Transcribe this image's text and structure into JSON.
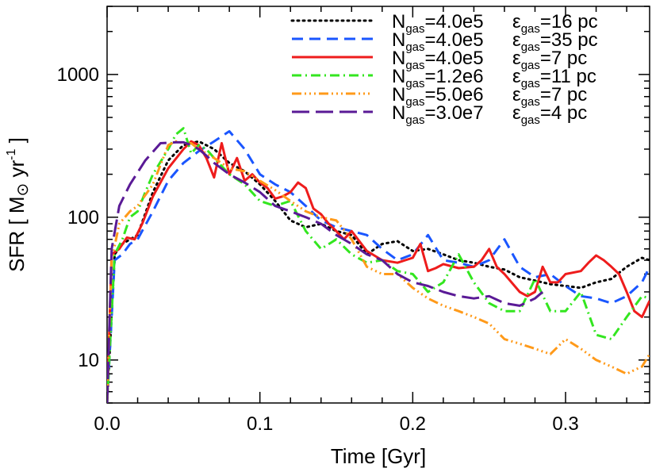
{
  "chart_data": {
    "type": "line",
    "xlabel": "Time  [Gyr]",
    "ylabel": {
      "prefix": "SFR [ M",
      "sun": "⊙",
      "mid": " yr",
      "sup": "-1",
      "suffix": " ]"
    },
    "xlim": [
      0.0,
      0.355
    ],
    "ylim": [
      5,
      3000
    ],
    "y_scale": "log",
    "x_ticks": [
      0.0,
      0.1,
      0.2,
      0.3
    ],
    "x_tick_labels": [
      "0.0",
      "0.1",
      "0.2",
      "0.3"
    ],
    "y_ticks": [
      10,
      100,
      1000
    ],
    "y_tick_labels": [
      "10",
      "100",
      "1000"
    ],
    "grid": false,
    "legend_position": "top-right",
    "series": [
      {
        "name": {
          "n_sym": "N",
          "n_sub": "gas",
          "n_val": "=4.0e5",
          "e_sym": "ε",
          "e_sub": "gas",
          "e_val": "=16 pc"
        },
        "color": "#000000",
        "dash": "dotted",
        "x": [
          0.0,
          0.005,
          0.01,
          0.015,
          0.02,
          0.03,
          0.04,
          0.05,
          0.06,
          0.07,
          0.08,
          0.09,
          0.1,
          0.11,
          0.12,
          0.13,
          0.14,
          0.15,
          0.16,
          0.17,
          0.18,
          0.19,
          0.2,
          0.21,
          0.22,
          0.23,
          0.24,
          0.25,
          0.26,
          0.27,
          0.28,
          0.29,
          0.3,
          0.31,
          0.32,
          0.33,
          0.34,
          0.35,
          0.355
        ],
        "y": [
          5,
          55,
          65,
          70,
          75,
          150,
          250,
          320,
          340,
          300,
          240,
          210,
          170,
          130,
          95,
          85,
          90,
          80,
          75,
          55,
          65,
          68,
          58,
          60,
          55,
          50,
          48,
          45,
          43,
          38,
          36,
          34,
          33,
          32,
          35,
          37,
          45,
          52,
          50
        ]
      },
      {
        "name": {
          "n_sym": "N",
          "n_sub": "gas",
          "n_val": "=4.0e5",
          "e_sym": "ε",
          "e_sub": "gas",
          "e_val": "=35 pc"
        },
        "color": "#1a56ff",
        "dash": "dashed",
        "x": [
          0.0,
          0.005,
          0.01,
          0.015,
          0.02,
          0.03,
          0.04,
          0.05,
          0.06,
          0.07,
          0.08,
          0.09,
          0.1,
          0.11,
          0.12,
          0.13,
          0.14,
          0.15,
          0.16,
          0.17,
          0.18,
          0.19,
          0.2,
          0.21,
          0.22,
          0.23,
          0.24,
          0.25,
          0.26,
          0.27,
          0.28,
          0.29,
          0.3,
          0.31,
          0.32,
          0.33,
          0.34,
          0.35,
          0.355
        ],
        "y": [
          5,
          50,
          55,
          65,
          70,
          110,
          180,
          240,
          290,
          340,
          400,
          300,
          200,
          170,
          150,
          120,
          95,
          85,
          80,
          75,
          60,
          50,
          55,
          75,
          50,
          48,
          45,
          50,
          70,
          45,
          38,
          40,
          33,
          28,
          27,
          25,
          28,
          35,
          45
        ]
      },
      {
        "name": {
          "n_sym": "N",
          "n_sub": "gas",
          "n_val": "=4.0e5",
          "e_sym": "ε",
          "e_sub": "gas",
          "e_val": "=7 pc"
        },
        "color": "#ee1c1c",
        "dash": "solid",
        "x": [
          0.0,
          0.003,
          0.008,
          0.013,
          0.018,
          0.023,
          0.03,
          0.04,
          0.05,
          0.055,
          0.06,
          0.065,
          0.07,
          0.075,
          0.08,
          0.085,
          0.09,
          0.095,
          0.1,
          0.105,
          0.11,
          0.115,
          0.12,
          0.125,
          0.13,
          0.135,
          0.14,
          0.145,
          0.15,
          0.155,
          0.16,
          0.17,
          0.18,
          0.19,
          0.2,
          0.205,
          0.21,
          0.215,
          0.22,
          0.23,
          0.24,
          0.245,
          0.25,
          0.255,
          0.26,
          0.27,
          0.275,
          0.28,
          0.285,
          0.29,
          0.295,
          0.3,
          0.31,
          0.315,
          0.32,
          0.325,
          0.33,
          0.335,
          0.34,
          0.345,
          0.35,
          0.355
        ],
        "y": [
          5,
          55,
          60,
          72,
          70,
          90,
          140,
          220,
          300,
          340,
          320,
          260,
          190,
          330,
          200,
          260,
          180,
          200,
          175,
          160,
          135,
          140,
          150,
          175,
          160,
          115,
          105,
          90,
          80,
          70,
          80,
          58,
          50,
          48,
          52,
          65,
          42,
          44,
          47,
          44,
          45,
          50,
          60,
          45,
          40,
          30,
          28,
          30,
          45,
          35,
          35,
          40,
          42,
          48,
          54,
          50,
          45,
          40,
          30,
          22,
          20,
          26
        ]
      },
      {
        "name": {
          "n_sym": "N",
          "n_sub": "gas",
          "n_val": "=1.2e6",
          "e_sym": "ε",
          "e_sub": "gas",
          "e_val": "=11 pc"
        },
        "color": "#33e61f",
        "dash": "dashdot",
        "x": [
          0.0,
          0.005,
          0.01,
          0.015,
          0.02,
          0.025,
          0.03,
          0.04,
          0.045,
          0.05,
          0.055,
          0.06,
          0.065,
          0.07,
          0.08,
          0.09,
          0.1,
          0.11,
          0.12,
          0.13,
          0.14,
          0.15,
          0.16,
          0.17,
          0.18,
          0.19,
          0.2,
          0.21,
          0.22,
          0.23,
          0.24,
          0.25,
          0.26,
          0.27,
          0.28,
          0.29,
          0.3,
          0.31,
          0.32,
          0.33,
          0.34,
          0.35,
          0.355
        ],
        "y": [
          5,
          55,
          70,
          100,
          110,
          150,
          200,
          300,
          380,
          420,
          280,
          320,
          300,
          260,
          200,
          170,
          130,
          120,
          130,
          80,
          60,
          70,
          55,
          48,
          50,
          42,
          40,
          30,
          35,
          55,
          35,
          25,
          22,
          22,
          37,
          22,
          22,
          30,
          15,
          14,
          20,
          28,
          27
        ]
      },
      {
        "name": {
          "n_sym": "N",
          "n_sub": "gas",
          "n_val": "=5.0e6",
          "e_sym": "ε",
          "e_sub": "gas",
          "e_val": "=7 pc"
        },
        "color": "#ff9a1a",
        "dash": "dashdotdotdot",
        "x": [
          0.0,
          0.003,
          0.008,
          0.015,
          0.02,
          0.03,
          0.04,
          0.045,
          0.05,
          0.055,
          0.06,
          0.065,
          0.07,
          0.08,
          0.09,
          0.1,
          0.11,
          0.12,
          0.13,
          0.14,
          0.15,
          0.16,
          0.17,
          0.18,
          0.19,
          0.2,
          0.21,
          0.22,
          0.23,
          0.24,
          0.25,
          0.26,
          0.27,
          0.28,
          0.29,
          0.3,
          0.31,
          0.32,
          0.33,
          0.34,
          0.345,
          0.35,
          0.355
        ],
        "y": [
          5,
          50,
          90,
          110,
          120,
          170,
          320,
          340,
          330,
          330,
          300,
          280,
          260,
          220,
          210,
          180,
          155,
          130,
          110,
          100,
          95,
          70,
          45,
          40,
          40,
          32,
          27,
          24,
          22,
          20,
          18,
          14,
          13,
          12,
          11,
          14,
          12,
          10,
          9,
          8,
          8.5,
          9,
          11
        ]
      },
      {
        "name": {
          "n_sym": "N",
          "n_sub": "gas",
          "n_val": "=3.0e7",
          "e_sym": "ε",
          "e_sub": "gas",
          "e_val": "=4 pc"
        },
        "color": "#5a1a96",
        "dash": "longdash",
        "x": [
          0.0,
          0.003,
          0.008,
          0.015,
          0.025,
          0.035,
          0.045,
          0.05,
          0.055,
          0.06,
          0.065,
          0.07,
          0.08,
          0.09,
          0.1,
          0.11,
          0.12,
          0.13,
          0.14,
          0.15,
          0.16,
          0.17,
          0.18,
          0.19,
          0.2,
          0.21,
          0.22,
          0.23,
          0.24,
          0.25,
          0.26,
          0.27,
          0.28,
          0.285
        ],
        "y": [
          5,
          60,
          120,
          170,
          250,
          330,
          335,
          335,
          320,
          300,
          270,
          240,
          200,
          175,
          150,
          120,
          110,
          100,
          90,
          75,
          65,
          55,
          50,
          40,
          35,
          33,
          30,
          28,
          27,
          28,
          25,
          24,
          27,
          30
        ]
      }
    ]
  }
}
